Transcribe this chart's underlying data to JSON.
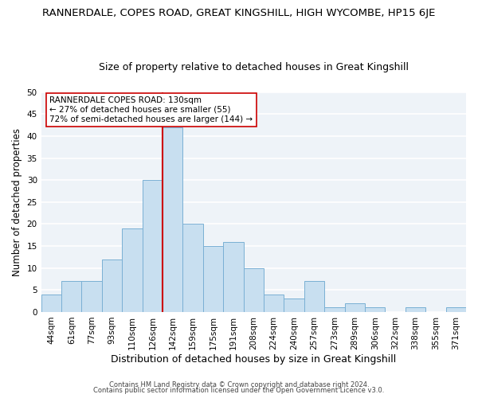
{
  "title": "RANNERDALE, COPES ROAD, GREAT KINGSHILL, HIGH WYCOMBE, HP15 6JE",
  "subtitle": "Size of property relative to detached houses in Great Kingshill",
  "xlabel": "Distribution of detached houses by size in Great Kingshill",
  "ylabel": "Number of detached properties",
  "bin_labels": [
    "44sqm",
    "61sqm",
    "77sqm",
    "93sqm",
    "110sqm",
    "126sqm",
    "142sqm",
    "159sqm",
    "175sqm",
    "191sqm",
    "208sqm",
    "224sqm",
    "240sqm",
    "257sqm",
    "273sqm",
    "289sqm",
    "306sqm",
    "322sqm",
    "338sqm",
    "355sqm",
    "371sqm"
  ],
  "bin_values": [
    4,
    7,
    7,
    12,
    19,
    30,
    42,
    20,
    15,
    16,
    10,
    4,
    3,
    7,
    1,
    2,
    1,
    0,
    1,
    0,
    1
  ],
  "bar_color": "#c8dff0",
  "bar_edge_color": "#7ab0d4",
  "vline_x_index": 6,
  "vline_color": "#cc0000",
  "annotation_line1": "RANNERDALE COPES ROAD: 130sqm",
  "annotation_line2": "← 27% of detached houses are smaller (55)",
  "annotation_line3": "72% of semi-detached houses are larger (144) →",
  "annotation_box_color": "#ffffff",
  "annotation_box_edge": "#cc0000",
  "ylim": [
    0,
    50
  ],
  "yticks": [
    0,
    5,
    10,
    15,
    20,
    25,
    30,
    35,
    40,
    45,
    50
  ],
  "footer1": "Contains HM Land Registry data © Crown copyright and database right 2024.",
  "footer2": "Contains public sector information licensed under the Open Government Licence v3.0.",
  "fig_bg_color": "#ffffff",
  "plot_bg_color": "#eef3f8",
  "grid_color": "#ffffff",
  "title_fontsize": 9.5,
  "subtitle_fontsize": 9,
  "xlabel_fontsize": 9,
  "ylabel_fontsize": 8.5,
  "tick_fontsize": 7.5,
  "annot_fontsize": 7.5,
  "footer_fontsize": 6
}
